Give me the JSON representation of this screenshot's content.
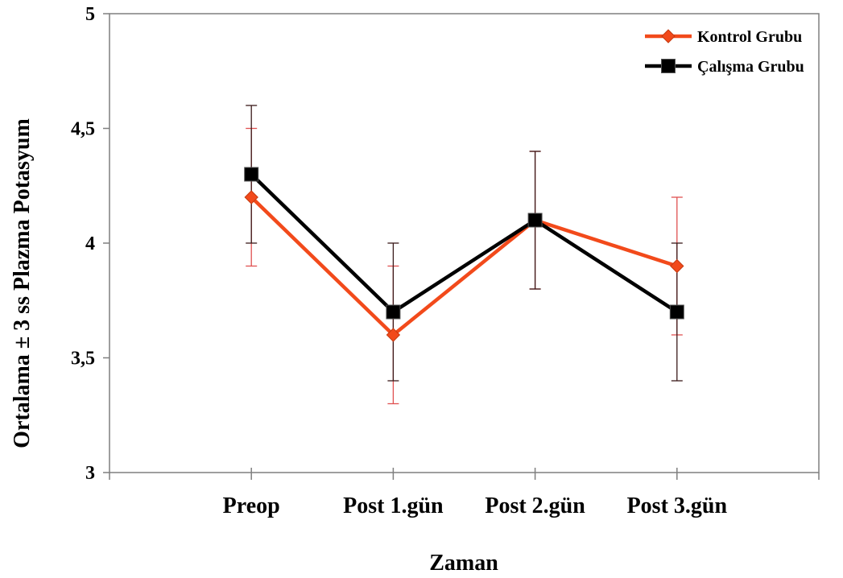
{
  "chart_data": {
    "type": "line",
    "title": "",
    "xlabel": "Zaman",
    "ylabel": "Ortalama ± 3 ss Plazma Potasyum",
    "categories": [
      "Preop",
      "Post 1.gün",
      "Post 2.gün",
      "Post 3.gün"
    ],
    "ylim": [
      3,
      5
    ],
    "yticks": [
      3,
      3.5,
      4,
      4.5,
      5
    ],
    "ytick_labels": [
      "3",
      "3,5",
      "4",
      "4,5",
      "5"
    ],
    "grid": false,
    "legend_position": "top-right",
    "series": [
      {
        "name": "Kontrol Grubu",
        "color": "#f24a1b",
        "errorbar_color": "#e05050",
        "marker": "diamond",
        "values": [
          4.2,
          3.6,
          4.1,
          3.9
        ],
        "error_low": [
          3.9,
          3.3,
          3.8,
          3.6
        ],
        "error_high": [
          4.5,
          3.9,
          4.4,
          4.2
        ]
      },
      {
        "name": "Çalışma Grubu",
        "color": "#000000",
        "errorbar_color": "#3a1a1a",
        "marker": "square",
        "values": [
          4.3,
          3.7,
          4.1,
          3.7
        ],
        "error_low": [
          4.0,
          3.4,
          3.8,
          3.4
        ],
        "error_high": [
          4.6,
          4.0,
          4.4,
          4.0
        ]
      }
    ]
  }
}
